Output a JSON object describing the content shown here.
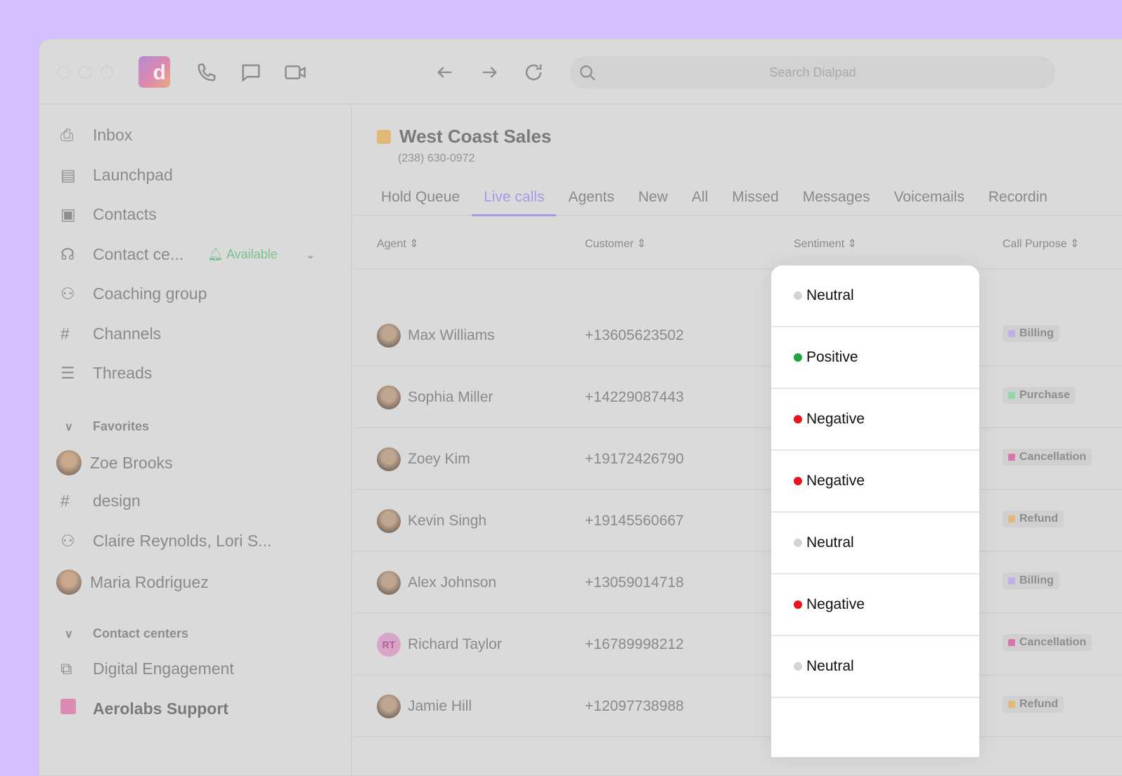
{
  "search": {
    "placeholder": "Search Dialpad"
  },
  "app": {
    "logo_letter": "d"
  },
  "sidebar": {
    "items": [
      {
        "label": "Inbox",
        "icon": "inbox-icon"
      },
      {
        "label": "Launchpad",
        "icon": "launchpad-icon"
      },
      {
        "label": "Contacts",
        "icon": "contacts-icon"
      },
      {
        "label": "Contact ce...",
        "icon": "headset-icon"
      },
      {
        "label": "Coaching group",
        "icon": "group-icon"
      },
      {
        "label": "Channels",
        "icon": "hash-icon"
      },
      {
        "label": "Threads",
        "icon": "threads-icon"
      }
    ],
    "status": "Available",
    "favorites_label": "Favorites",
    "favorites": [
      "Zoe Brooks",
      "design",
      "Claire Reynolds, Lori S...",
      "Maria Rodriguez"
    ],
    "contact_centers_label": "Contact centers",
    "contact_centers": [
      "Digital Engagement",
      "Aerolabs Support"
    ]
  },
  "header": {
    "title": "West Coast Sales",
    "phone": "(238) 630-0972",
    "title_color": "#e2b878"
  },
  "tabs": [
    "Hold Queue",
    "Live calls",
    "Agents",
    "New",
    "All",
    "Missed",
    "Messages",
    "Voicemails",
    "Recordin"
  ],
  "active_tab": "Live calls",
  "columns": [
    "Agent",
    "Customer",
    "Sentiment",
    "Call Purpose"
  ],
  "rows": [
    {
      "agent": "Max Williams",
      "customer": "+13605623502",
      "sentiment": "Neutral",
      "purpose": "Billing"
    },
    {
      "agent": "Sophia Miller",
      "customer": "+14229087443",
      "sentiment": "Positive",
      "purpose": "Purchase"
    },
    {
      "agent": "Zoey Kim",
      "customer": "+19172426790",
      "sentiment": "Negative",
      "purpose": "Cancellation"
    },
    {
      "agent": "Kevin Singh",
      "customer": "+19145560667",
      "sentiment": "Negative",
      "purpose": "Refund"
    },
    {
      "agent": "Alex Johnson",
      "customer": "+13059014718",
      "sentiment": "Neutral",
      "purpose": "Billing"
    },
    {
      "agent": "Richard Taylor",
      "initials": "RT",
      "customer": "+16789998212",
      "sentiment": "Negative",
      "purpose": "Cancellation"
    },
    {
      "agent": "Jamie Hill",
      "customer": "+12097738988",
      "sentiment": "Neutral",
      "purpose": "Refund"
    }
  ],
  "sentiment_colors": {
    "Neutral": "#d4d4d4",
    "Positive": "#1fa33f",
    "Negative": "#e8141b"
  },
  "purpose_colors": {
    "Billing": "#c2aee6",
    "Purchase": "#90d8a4",
    "Cancellation": "#dc74ad",
    "Refund": "#e2b878"
  }
}
